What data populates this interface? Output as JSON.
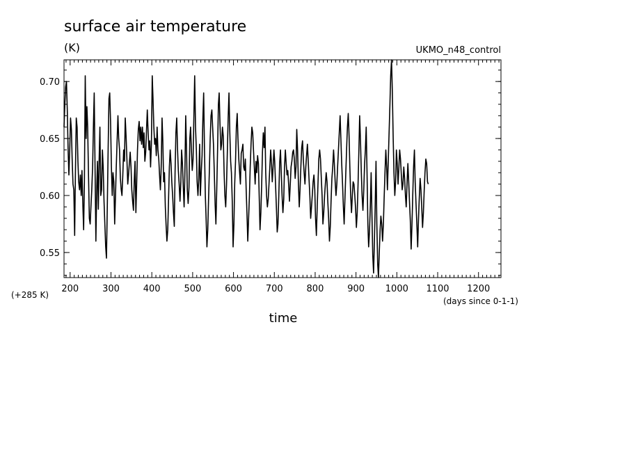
{
  "chart_data": {
    "type": "line",
    "title": "surface air temperature",
    "units": "(K)",
    "run_label": "UKMO_n48_control",
    "offset_label": "(+285 K)",
    "xlabel": "time",
    "x_units": "(days since 0-1-1)",
    "xlim": [
      185,
      1255
    ],
    "ylim": [
      0.528,
      0.719
    ],
    "x_ticks": [
      200,
      300,
      400,
      500,
      600,
      700,
      800,
      900,
      1000,
      1100,
      1200
    ],
    "y_ticks": [
      0.55,
      0.6,
      0.65,
      0.7
    ],
    "y_tick_labels": [
      "0.55",
      "0.60",
      "0.65",
      "0.70"
    ],
    "x_tick_labels": [
      "200",
      "300",
      "400",
      "500",
      "600",
      "700",
      "800",
      "900",
      "1000",
      "1100",
      "1200"
    ],
    "series": [
      {
        "x_start": 185,
        "x_step": 2,
        "values": [
          0.66,
          0.68,
          0.695,
          0.7,
          0.675,
          0.64,
          0.618,
          0.64,
          0.668,
          0.658,
          0.632,
          0.61,
          0.605,
          0.565,
          0.62,
          0.668,
          0.66,
          0.63,
          0.612,
          0.605,
          0.618,
          0.6,
          0.622,
          0.593,
          0.57,
          0.612,
          0.705,
          0.65,
          0.678,
          0.66,
          0.618,
          0.58,
          0.575,
          0.59,
          0.605,
          0.625,
          0.662,
          0.69,
          0.625,
          0.56,
          0.605,
          0.63,
          0.588,
          0.632,
          0.66,
          0.6,
          0.605,
          0.64,
          0.625,
          0.595,
          0.575,
          0.555,
          0.545,
          0.59,
          0.64,
          0.685,
          0.69,
          0.665,
          0.625,
          0.6,
          0.62,
          0.612,
          0.575,
          0.6,
          0.625,
          0.648,
          0.67,
          0.65,
          0.64,
          0.615,
          0.605,
          0.6,
          0.618,
          0.64,
          0.63,
          0.668,
          0.652,
          0.632,
          0.61,
          0.618,
          0.628,
          0.638,
          0.625,
          0.605,
          0.595,
          0.587,
          0.612,
          0.63,
          0.585,
          0.612,
          0.64,
          0.658,
          0.665,
          0.648,
          0.66,
          0.645,
          0.66,
          0.642,
          0.655,
          0.63,
          0.638,
          0.658,
          0.675,
          0.655,
          0.64,
          0.648,
          0.625,
          0.645,
          0.705,
          0.685,
          0.66,
          0.645,
          0.65,
          0.635,
          0.66,
          0.64,
          0.632,
          0.618,
          0.605,
          0.625,
          0.668,
          0.648,
          0.612,
          0.62,
          0.59,
          0.574,
          0.56,
          0.57,
          0.598,
          0.625,
          0.64,
          0.628,
          0.612,
          0.6,
          0.585,
          0.573,
          0.62,
          0.655,
          0.668,
          0.64,
          0.622,
          0.61,
          0.595,
          0.612,
          0.64,
          0.628,
          0.608,
          0.59,
          0.618,
          0.67,
          0.64,
          0.605,
          0.593,
          0.607,
          0.65,
          0.66,
          0.64,
          0.622,
          0.632,
          0.668,
          0.705,
          0.66,
          0.64,
          0.612,
          0.6,
          0.615,
          0.645,
          0.6,
          0.62,
          0.635,
          0.668,
          0.69,
          0.64,
          0.6,
          0.58,
          0.555,
          0.57,
          0.598,
          0.622,
          0.65,
          0.67,
          0.675,
          0.66,
          0.645,
          0.62,
          0.592,
          0.575,
          0.605,
          0.64,
          0.68,
          0.69,
          0.662,
          0.64,
          0.645,
          0.66,
          0.652,
          0.62,
          0.6,
          0.59,
          0.61,
          0.64,
          0.668,
          0.69,
          0.655,
          0.63,
          0.62,
          0.595,
          0.555,
          0.575,
          0.61,
          0.63,
          0.66,
          0.672,
          0.65,
          0.632,
          0.62,
          0.61,
          0.637,
          0.64,
          0.645,
          0.625,
          0.622,
          0.632,
          0.605,
          0.585,
          0.56,
          0.58,
          0.6,
          0.625,
          0.645,
          0.66,
          0.655,
          0.64,
          0.625,
          0.61,
          0.63,
          0.62,
          0.635,
          0.628,
          0.6,
          0.57,
          0.585,
          0.61,
          0.638,
          0.655,
          0.642,
          0.66,
          0.62,
          0.6,
          0.59,
          0.597,
          0.61,
          0.625,
          0.64,
          0.628,
          0.612,
          0.625,
          0.64,
          0.63,
          0.61,
          0.59,
          0.568,
          0.575,
          0.6,
          0.628,
          0.64,
          0.62,
          0.6,
          0.585,
          0.597,
          0.625,
          0.64,
          0.628,
          0.618,
          0.622,
          0.61,
          0.595,
          0.61,
          0.625,
          0.63,
          0.638,
          0.64,
          0.632,
          0.615,
          0.625,
          0.658,
          0.64,
          0.61,
          0.59,
          0.605,
          0.625,
          0.642,
          0.648,
          0.632,
          0.62,
          0.61,
          0.625,
          0.635,
          0.645,
          0.63,
          0.615,
          0.6,
          0.58,
          0.59,
          0.6,
          0.612,
          0.618,
          0.605,
          0.58,
          0.565,
          0.59,
          0.612,
          0.632,
          0.64,
          0.632,
          0.615,
          0.6,
          0.575,
          0.585,
          0.6,
          0.61,
          0.62,
          0.612,
          0.595,
          0.58,
          0.56,
          0.573,
          0.595,
          0.615,
          0.625,
          0.64,
          0.628,
          0.612,
          0.6,
          0.61,
          0.625,
          0.64,
          0.655,
          0.67,
          0.65,
          0.628,
          0.61,
          0.59,
          0.575,
          0.598,
          0.62,
          0.64,
          0.66,
          0.672,
          0.652,
          0.625,
          0.6,
          0.585,
          0.6,
          0.612,
          0.61,
          0.6,
          0.588,
          0.572,
          0.585,
          0.61,
          0.64,
          0.67,
          0.648,
          0.62,
          0.6,
          0.587,
          0.605,
          0.628,
          0.64,
          0.66,
          0.62,
          0.575,
          0.555,
          0.568,
          0.59,
          0.62,
          0.585,
          0.548,
          0.532,
          0.56,
          0.59,
          0.63,
          0.575,
          0.54,
          0.525,
          0.55,
          0.57,
          0.582,
          0.575,
          0.56,
          0.575,
          0.598,
          0.62,
          0.64,
          0.625,
          0.605,
          0.63,
          0.655,
          0.68,
          0.705,
          0.72,
          0.69,
          0.65,
          0.62,
          0.6,
          0.612,
          0.64,
          0.628,
          0.61,
          0.625,
          0.64,
          0.632,
          0.618,
          0.605,
          0.61,
          0.625,
          0.615,
          0.6,
          0.59,
          0.61,
          0.628,
          0.612,
          0.595,
          0.578,
          0.553,
          0.575,
          0.6,
          0.625,
          0.64,
          0.612,
          0.593,
          0.575,
          0.555,
          0.578,
          0.598,
          0.615,
          0.605,
          0.59,
          0.572,
          0.585,
          0.605,
          0.62,
          0.632,
          0.628,
          0.612,
          0.61
        ]
      }
    ]
  }
}
